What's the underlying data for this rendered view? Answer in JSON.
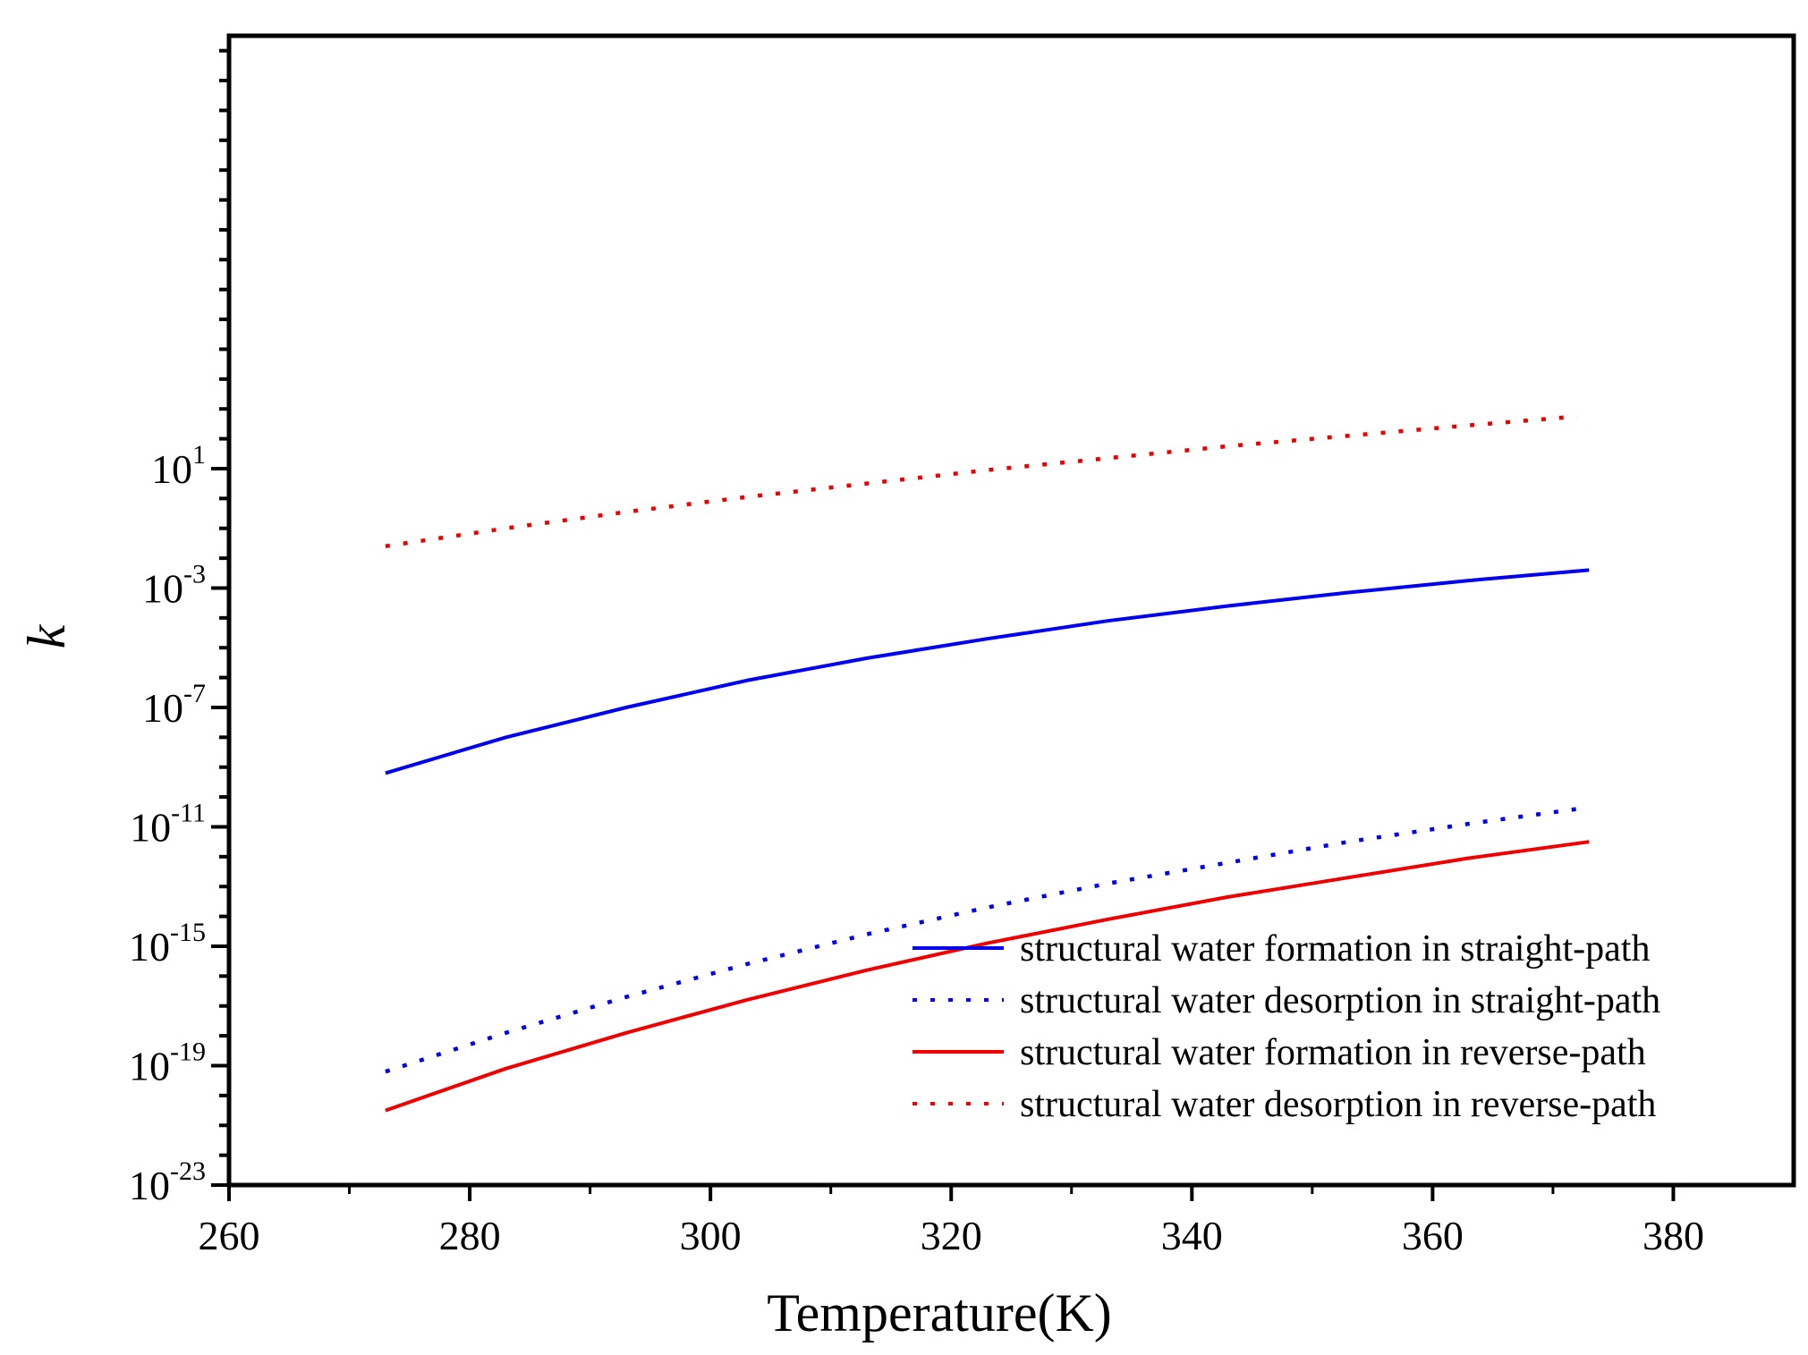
{
  "chart_data": {
    "type": "line",
    "title": "",
    "xlabel": "Temperature(K)",
    "ylabel": "k",
    "xlim": [
      260,
      390
    ],
    "ylim_log10": [
      -23,
      15.5
    ],
    "yscale": "log",
    "x_ticks": [
      260,
      280,
      300,
      320,
      340,
      360,
      380
    ],
    "x_tick_labels": [
      "260",
      "280",
      "300",
      "320",
      "340",
      "360",
      "380"
    ],
    "y_ticks": [
      {
        "base": "10",
        "exp": "-23",
        "value": -23
      },
      {
        "base": "10",
        "exp": "-19",
        "value": -19
      },
      {
        "base": "10",
        "exp": "-15",
        "value": -15
      },
      {
        "base": "10",
        "exp": "-11",
        "value": -11
      },
      {
        "base": "10",
        "exp": "-7",
        "value": -7
      },
      {
        "base": "10",
        "exp": "-3",
        "value": -3
      },
      {
        "base": "10",
        "exp": "1",
        "value": 1
      }
    ],
    "legend_position": "bottom-right",
    "series": [
      {
        "name": "structural water formation in straight-path",
        "color": "#0000ee",
        "dash": "solid",
        "x": [
          273,
          283,
          293,
          303,
          313,
          323,
          333,
          343,
          353,
          363,
          373
        ],
        "log10_y": [
          -9.2,
          -8.0,
          -7.0,
          -6.1,
          -5.35,
          -4.7,
          -4.1,
          -3.6,
          -3.15,
          -2.75,
          -2.4
        ]
      },
      {
        "name": "structural water desorption in straight-path",
        "color": "#0000ee",
        "dash": "dotted",
        "x": [
          273,
          283,
          293,
          303,
          313,
          323,
          333,
          343,
          353,
          363,
          372
        ],
        "log10_y": [
          -19.2,
          -17.9,
          -16.7,
          -15.6,
          -14.6,
          -13.7,
          -12.9,
          -12.2,
          -11.5,
          -10.9,
          -10.4
        ]
      },
      {
        "name": "structural water formation in reverse-path",
        "color": "#ee0000",
        "dash": "solid",
        "x": [
          273,
          283,
          293,
          303,
          313,
          323,
          333,
          343,
          353,
          363,
          373
        ],
        "log10_y": [
          -20.5,
          -19.1,
          -17.9,
          -16.8,
          -15.8,
          -14.9,
          -14.1,
          -13.35,
          -12.7,
          -12.05,
          -11.5
        ]
      },
      {
        "name": "structural water desorption in reverse-path",
        "color": "#ee0000",
        "dash": "dotted",
        "x": [
          273,
          283,
          293,
          303,
          313,
          323,
          333,
          343,
          353,
          363,
          372
        ],
        "log10_y": [
          -1.6,
          -1.0,
          -0.45,
          0.05,
          0.5,
          0.95,
          1.35,
          1.75,
          2.1,
          2.45,
          2.75
        ]
      }
    ]
  }
}
